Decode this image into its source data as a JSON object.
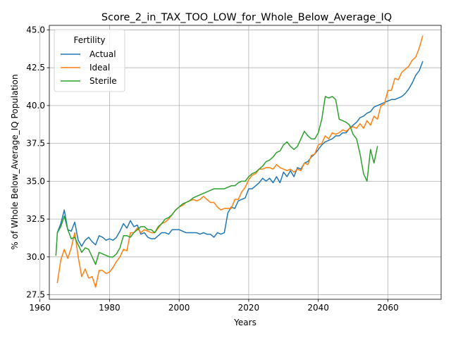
{
  "chart_data": {
    "type": "line",
    "title": "Score_2_in_TAX_TOO_LOW_for_Whole_Below_Average_IQ",
    "xlabel": "Years",
    "ylabel": "% of Whole Below_Average_IQ Population",
    "xlim": [
      1962.7,
      2075.3
    ],
    "ylim": [
      27.2,
      45.3
    ],
    "xticks": [
      1960,
      1980,
      2000,
      2020,
      2040,
      2060
    ],
    "yticks": [
      27.5,
      30.0,
      32.5,
      35.0,
      37.5,
      40.0,
      42.5,
      45.0
    ],
    "xtick_labels": [
      "1960",
      "1980",
      "2000",
      "2020",
      "2040",
      "2060"
    ],
    "ytick_labels": [
      "27.5",
      "30.0",
      "32.5",
      "35.0",
      "37.5",
      "40.0",
      "42.5",
      "45.0"
    ],
    "grid": true,
    "legend": {
      "title": "Fertility",
      "placement": "upper-left"
    },
    "series": [
      {
        "name": "Actual",
        "color": "#1f77b4",
        "x": [
          1965,
          1966,
          1967,
          1968,
          1969,
          1970,
          1971,
          1972,
          1973,
          1974,
          1975,
          1976,
          1977,
          1978,
          1979,
          1980,
          1981,
          1982,
          1983,
          1984,
          1985,
          1986,
          1987,
          1988,
          1989,
          1990,
          1991,
          1992,
          1993,
          1994,
          1995,
          1996,
          1997,
          1998,
          1999,
          2000,
          2001,
          2002,
          2003,
          2004,
          2005,
          2006,
          2007,
          2008,
          2009,
          2010,
          2011,
          2012,
          2013,
          2014,
          2015,
          2016,
          2017,
          2018,
          2019,
          2020,
          2021,
          2022,
          2023,
          2024,
          2025,
          2026,
          2027,
          2028,
          2029,
          2030,
          2031,
          2032,
          2033,
          2034,
          2035,
          2036,
          2037,
          2038,
          2039,
          2040,
          2041,
          2042,
          2043,
          2044,
          2045,
          2046,
          2047,
          2048,
          2049,
          2050,
          2051,
          2052,
          2053,
          2054,
          2055,
          2056,
          2057,
          2058,
          2059,
          2060,
          2061,
          2062,
          2063,
          2064,
          2065,
          2066,
          2067,
          2068,
          2069,
          2070
        ],
        "y": [
          31.6,
          32.2,
          33.1,
          31.8,
          31.7,
          32.3,
          31.1,
          30.7,
          31.1,
          31.3,
          31.0,
          30.8,
          31.4,
          31.3,
          31.1,
          31.2,
          31.1,
          31.3,
          31.7,
          32.2,
          31.9,
          32.4,
          32.0,
          32.1,
          31.5,
          31.6,
          31.3,
          31.2,
          31.2,
          31.4,
          31.6,
          31.6,
          31.5,
          31.8,
          31.8,
          31.8,
          31.7,
          31.6,
          31.6,
          31.6,
          31.6,
          31.5,
          31.6,
          31.5,
          31.5,
          31.3,
          31.6,
          31.5,
          31.6,
          32.9,
          33.3,
          33.2,
          33.7,
          33.8,
          33.9,
          34.5,
          34.5,
          34.7,
          34.9,
          35.2,
          35.0,
          35.2,
          34.9,
          35.3,
          34.9,
          35.6,
          35.3,
          35.7,
          35.3,
          35.9,
          35.8,
          36.2,
          36.3,
          36.6,
          36.8,
          37.1,
          37.4,
          37.6,
          37.7,
          37.8,
          38.0,
          38.0,
          38.2,
          38.2,
          38.5,
          38.7,
          38.9,
          39.2,
          39.3,
          39.5,
          39.6,
          39.9,
          40.0,
          40.1,
          40.2,
          40.3,
          40.4,
          40.4,
          40.5,
          40.6,
          40.8,
          41.1,
          41.5,
          42.0,
          42.3,
          42.9
        ]
      },
      {
        "name": "Ideal",
        "color": "#ff7f0e",
        "x": [
          1965,
          1966,
          1967,
          1968,
          1969,
          1970,
          1971,
          1972,
          1973,
          1974,
          1975,
          1976,
          1977,
          1978,
          1979,
          1980,
          1981,
          1982,
          1983,
          1984,
          1985,
          1986,
          1987,
          1988,
          1989,
          1990,
          1991,
          1992,
          1993,
          1994,
          1995,
          1996,
          1997,
          1998,
          1999,
          2000,
          2001,
          2002,
          2003,
          2004,
          2005,
          2006,
          2007,
          2008,
          2009,
          2010,
          2011,
          2012,
          2013,
          2014,
          2015,
          2016,
          2017,
          2018,
          2019,
          2020,
          2021,
          2022,
          2023,
          2024,
          2025,
          2026,
          2027,
          2028,
          2029,
          2030,
          2031,
          2032,
          2033,
          2034,
          2035,
          2036,
          2037,
          2038,
          2039,
          2040,
          2041,
          2042,
          2043,
          2044,
          2045,
          2046,
          2047,
          2048,
          2049,
          2050,
          2051,
          2052,
          2053,
          2054,
          2055,
          2056,
          2057,
          2058,
          2059,
          2060,
          2061,
          2062,
          2063,
          2064,
          2065,
          2066,
          2067,
          2068,
          2069,
          2070
        ],
        "y": [
          28.3,
          29.8,
          30.5,
          29.9,
          30.6,
          31.6,
          30.0,
          28.7,
          29.2,
          28.6,
          28.7,
          28.0,
          29.1,
          29.1,
          28.9,
          29.0,
          29.3,
          29.7,
          30.0,
          30.5,
          30.4,
          31.6,
          31.6,
          31.9,
          31.6,
          31.8,
          31.7,
          31.6,
          31.6,
          31.9,
          32.2,
          32.3,
          32.5,
          32.8,
          33.1,
          33.3,
          33.4,
          33.6,
          33.7,
          33.8,
          33.7,
          33.8,
          34.0,
          33.8,
          33.6,
          33.6,
          33.3,
          33.1,
          33.2,
          33.2,
          33.2,
          33.8,
          33.8,
          34.3,
          34.6,
          35.1,
          35.4,
          35.5,
          35.8,
          35.8,
          35.9,
          35.9,
          35.8,
          36.1,
          35.9,
          35.8,
          35.7,
          35.8,
          35.6,
          35.8,
          35.7,
          36.2,
          36.1,
          36.7,
          36.8,
          37.4,
          37.5,
          38.0,
          37.8,
          38.2,
          38.1,
          38.2,
          38.4,
          38.3,
          38.5,
          38.6,
          38.5,
          38.8,
          38.5,
          39.0,
          38.7,
          39.3,
          39.1,
          40.0,
          40.1,
          41.0,
          41.0,
          41.8,
          41.7,
          42.2,
          42.4,
          42.6,
          43.0,
          43.2,
          43.8,
          44.6
        ]
      },
      {
        "name": "Sterile",
        "color": "#2ca02c",
        "x": [
          1964.6,
          1965,
          1966,
          1967,
          1968,
          1969,
          1970,
          1971,
          1972,
          1973,
          1974,
          1975,
          1976,
          1977,
          1978,
          1979,
          1980,
          1981,
          1982,
          1983,
          1984,
          1985,
          1986,
          1987,
          1988,
          1989,
          1990,
          1991,
          1992,
          1993,
          1994,
          1995,
          1996,
          1997,
          1998,
          1999,
          2000,
          2001,
          2002,
          2003,
          2004,
          2005,
          2006,
          2007,
          2008,
          2009,
          2010,
          2011,
          2012,
          2013,
          2014,
          2015,
          2016,
          2017,
          2018,
          2019,
          2020,
          2021,
          2022,
          2023,
          2024,
          2025,
          2026,
          2027,
          2028,
          2029,
          2030,
          2031,
          2032,
          2033,
          2034,
          2035,
          2036,
          2037,
          2038,
          2039,
          2040,
          2041,
          2042,
          2043,
          2044,
          2045,
          2046,
          2047,
          2048,
          2049,
          2050,
          2051,
          2052,
          2053,
          2054,
          2055,
          2056,
          2057
        ],
        "y": [
          30.1,
          31.6,
          32.0,
          32.7,
          31.8,
          31.2,
          31.3,
          30.8,
          30.3,
          30.6,
          30.5,
          30.0,
          29.5,
          30.3,
          30.2,
          30.1,
          30.0,
          30.0,
          30.2,
          30.6,
          31.4,
          31.4,
          31.3,
          31.6,
          31.8,
          32.0,
          32.0,
          31.8,
          31.8,
          31.6,
          32.0,
          32.2,
          32.5,
          32.6,
          32.8,
          33.1,
          33.3,
          33.5,
          33.6,
          33.7,
          33.9,
          34.0,
          34.1,
          34.2,
          34.3,
          34.4,
          34.5,
          34.5,
          34.5,
          34.5,
          34.6,
          34.7,
          34.7,
          34.9,
          35.0,
          35.0,
          35.3,
          35.5,
          35.6,
          35.8,
          36.0,
          36.3,
          36.4,
          36.6,
          36.9,
          37.0,
          37.4,
          37.6,
          37.3,
          37.1,
          37.3,
          37.8,
          38.3,
          38.0,
          37.8,
          37.8,
          38.2,
          39.1,
          40.6,
          40.5,
          40.6,
          40.4,
          39.1,
          39.0,
          38.9,
          38.7,
          38.1,
          37.8,
          36.8,
          35.5,
          35.0,
          37.1,
          36.2,
          37.3
        ]
      }
    ]
  }
}
